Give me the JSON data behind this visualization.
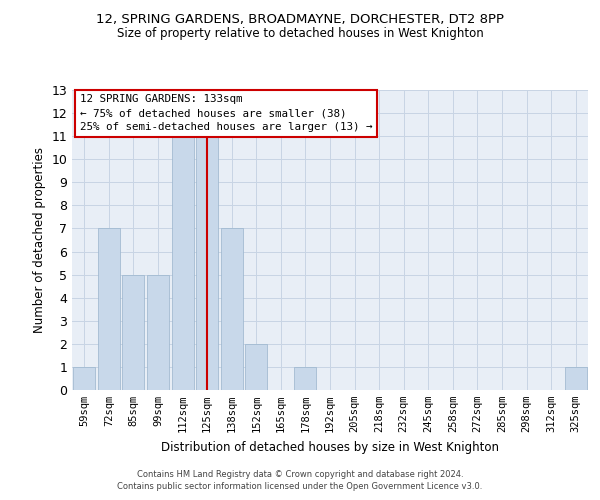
{
  "title1": "12, SPRING GARDENS, BROADMAYNE, DORCHESTER, DT2 8PP",
  "title2": "Size of property relative to detached houses in West Knighton",
  "xlabel": "Distribution of detached houses by size in West Knighton",
  "ylabel": "Number of detached properties",
  "categories": [
    "59sqm",
    "72sqm",
    "85sqm",
    "99sqm",
    "112sqm",
    "125sqm",
    "138sqm",
    "152sqm",
    "165sqm",
    "178sqm",
    "192sqm",
    "205sqm",
    "218sqm",
    "232sqm",
    "245sqm",
    "258sqm",
    "272sqm",
    "285sqm",
    "298sqm",
    "312sqm",
    "325sqm"
  ],
  "values": [
    1,
    7,
    5,
    5,
    11,
    11,
    7,
    2,
    0,
    1,
    0,
    0,
    0,
    0,
    0,
    0,
    0,
    0,
    0,
    0,
    1
  ],
  "bar_color": "#c8d8ea",
  "bar_edge_color": "#9ab4cc",
  "vline_x": 5,
  "vline_color": "#cc0000",
  "annotation_text": "12 SPRING GARDENS: 133sqm\n← 75% of detached houses are smaller (38)\n25% of semi-detached houses are larger (13) →",
  "annotation_box_color": "white",
  "annotation_box_edge": "#cc0000",
  "ylim": [
    0,
    13
  ],
  "yticks": [
    0,
    1,
    2,
    3,
    4,
    5,
    6,
    7,
    8,
    9,
    10,
    11,
    12,
    13
  ],
  "grid_color": "#c8d4e4",
  "bg_color": "#e8eef6",
  "footer1": "Contains HM Land Registry data © Crown copyright and database right 2024.",
  "footer2": "Contains public sector information licensed under the Open Government Licence v3.0."
}
